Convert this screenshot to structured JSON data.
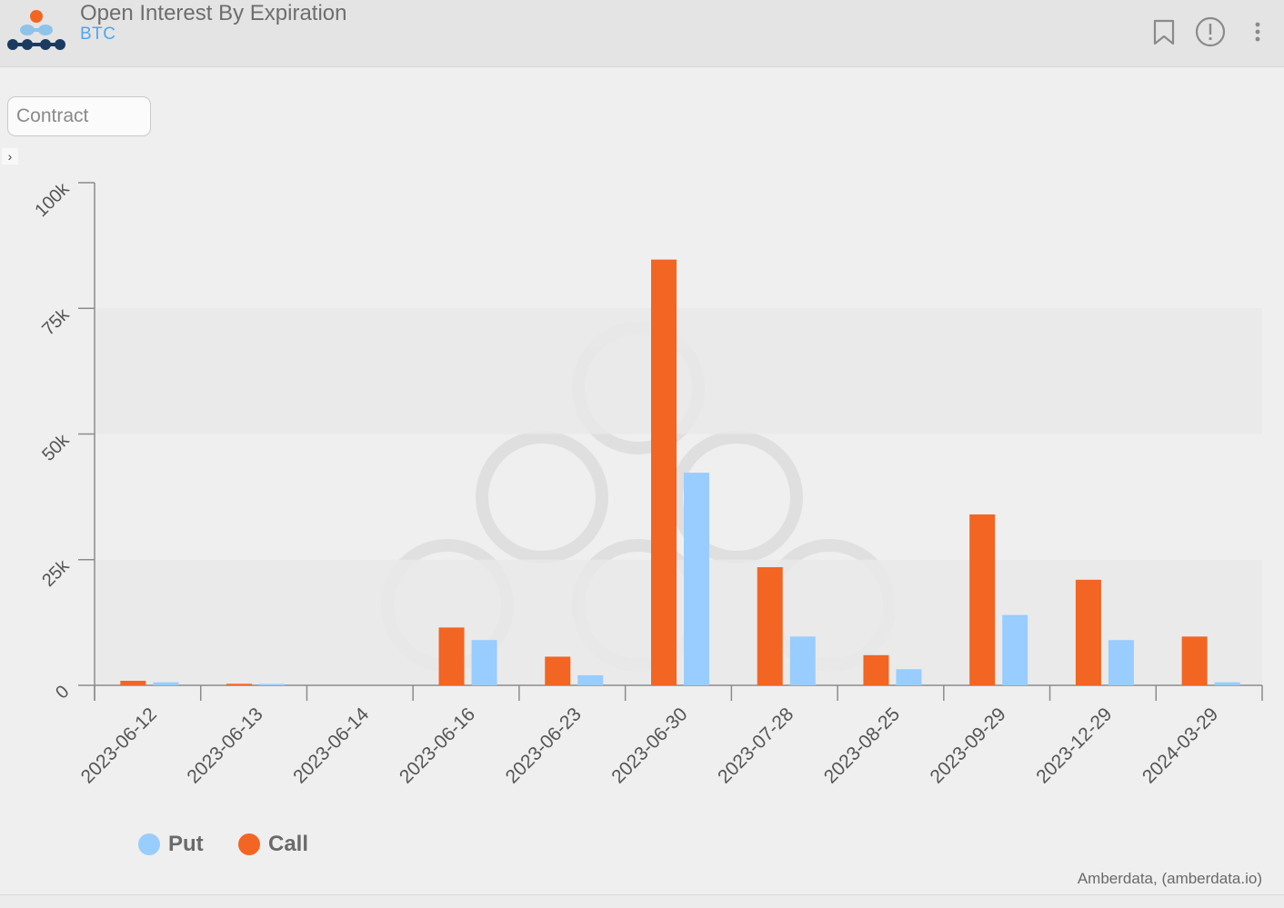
{
  "header": {
    "title": "Open Interest By Expiration",
    "subtitle": "BTC",
    "bookmark_icon": "bookmark-icon",
    "info_icon": "alert-circle-icon",
    "menu_icon": "more-vertical-icon"
  },
  "filter": {
    "placeholder": "Contract"
  },
  "expand_toggle": "›",
  "credit": "Amberdata, (amberdata.io)",
  "colors": {
    "put": "#99ccff",
    "call": "#f26522",
    "axis": "#8c8c8c",
    "band": "#e9e9e9"
  },
  "chart_data": {
    "type": "bar",
    "categories": [
      "2023-06-12",
      "2023-06-13",
      "2023-06-14",
      "2023-06-16",
      "2023-06-23",
      "2023-06-30",
      "2023-07-28",
      "2023-08-25",
      "2023-09-29",
      "2023-12-29",
      "2024-03-29"
    ],
    "series": [
      {
        "name": "Call",
        "color": "#f26522",
        "values": [
          900,
          300,
          0,
          11500,
          5700,
          84700,
          23500,
          6000,
          34000,
          21000,
          9700
        ]
      },
      {
        "name": "Put",
        "color": "#99ccff",
        "values": [
          600,
          250,
          0,
          9000,
          2000,
          42300,
          9700,
          3200,
          14000,
          9000,
          600
        ]
      }
    ],
    "yticks": [
      0,
      25000,
      50000,
      75000,
      100000
    ],
    "ytick_labels": [
      "0",
      "25k",
      "50k",
      "75k",
      "100k"
    ],
    "ylim": [
      0,
      100000
    ],
    "legend": [
      {
        "name": "Put",
        "color": "#99ccff"
      },
      {
        "name": "Call",
        "color": "#f26522"
      }
    ],
    "legend_position": "bottom-left",
    "bands": true
  }
}
